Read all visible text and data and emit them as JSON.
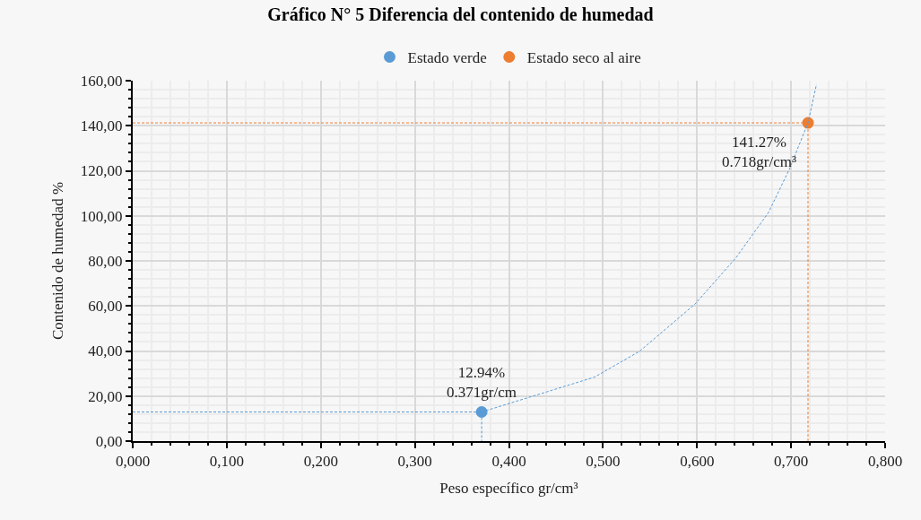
{
  "chart_data": {
    "type": "scatter",
    "title": "Gráfico N° 5 Diferencia del contenido de humedad",
    "xlabel": "Peso específico gr/cm³",
    "ylabel": "Contenido de humedad %",
    "series": [
      {
        "name": "Estado verde",
        "color": "#5b9bd5",
        "x": [
          0.371
        ],
        "values": [
          12.94
        ],
        "marker": "circle"
      },
      {
        "name": "Estado seco al aire",
        "color": "#ed7d31",
        "x": [
          0.718
        ],
        "values": [
          141.27
        ],
        "marker": "circle"
      },
      {
        "type": "line",
        "color": "#5b9bd5",
        "line_style": "dashed",
        "marker": "none",
        "x": [
          0,
          0.371,
          0.371
        ],
        "values": [
          12.94,
          12.94,
          0
        ]
      },
      {
        "type": "line",
        "color": "#ed7d31",
        "line_style": "dashed",
        "marker": "none",
        "x": [
          0,
          0.718,
          0.718
        ],
        "values": [
          141.27,
          141.27,
          0
        ]
      },
      {
        "type": "line",
        "color": "#5b9bd5",
        "line_style": "dashed",
        "marker": "none",
        "x": [
          0.371,
          0.491,
          0.539,
          0.598,
          0.641,
          0.676,
          0.698,
          0.718,
          0.727
        ],
        "values": [
          12.94,
          28.4,
          39.9,
          60.9,
          81.2,
          101.5,
          120.5,
          141.27,
          158.4
        ]
      }
    ],
    "annotations": [
      {
        "text": "12.94%\n0.371gr/cm",
        "x": 0.371,
        "y": 12.94
      },
      {
        "text": "141.27%\n0.718gr/cm³",
        "x": 0.718,
        "y": 141.27
      }
    ],
    "xlim": [
      0,
      0.8
    ],
    "xticks": [
      {
        "value": 0,
        "label": "0,000"
      },
      {
        "value": 0.1,
        "label": "0,100"
      },
      {
        "value": 0.2,
        "label": "0,200"
      },
      {
        "value": 0.3,
        "label": "0,300"
      },
      {
        "value": 0.4,
        "label": "0,400"
      },
      {
        "value": 0.5,
        "label": "0,500"
      },
      {
        "value": 0.6,
        "label": "0,600"
      },
      {
        "value": 0.7,
        "label": "0,700"
      },
      {
        "value": 0.8,
        "label": "0,800"
      }
    ],
    "ylim": [
      0,
      160
    ],
    "yticks": [
      {
        "value": 0,
        "label": "0,00"
      },
      {
        "value": 20,
        "label": "20,00"
      },
      {
        "value": 40,
        "label": "40,00"
      },
      {
        "value": 60,
        "label": "60,00"
      },
      {
        "value": 80,
        "label": "80,00"
      },
      {
        "value": 100,
        "label": "100,00"
      },
      {
        "value": 120,
        "label": "120,00"
      },
      {
        "value": 140,
        "label": "140,00"
      },
      {
        "value": 160,
        "label": "160,00"
      }
    ],
    "grid": true,
    "legend": "top"
  }
}
